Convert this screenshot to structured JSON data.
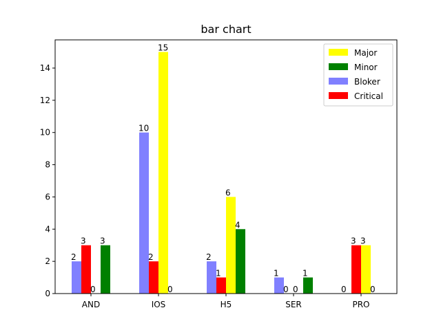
{
  "chart_data": {
    "type": "bar",
    "title": "bar chart",
    "xlabel": "",
    "ylabel": "",
    "categories": [
      "AND",
      "IOS",
      "H5",
      "SER",
      "PRO"
    ],
    "ylim": [
      0,
      15.75
    ],
    "yticks": [
      0,
      2,
      4,
      6,
      8,
      10,
      12,
      14
    ],
    "grid": false,
    "legend_position": "top-right",
    "legend_order": [
      "Major",
      "Minor",
      "Bloker",
      "Critical"
    ],
    "series": [
      {
        "name": "Bloker",
        "color": "#8080ff",
        "values": [
          2,
          10,
          2,
          1,
          0
        ]
      },
      {
        "name": "Critical",
        "color": "#ff0000",
        "values": [
          3,
          2,
          1,
          0,
          3
        ]
      },
      {
        "name": "Major",
        "color": "#ffff00",
        "values": [
          0,
          15,
          6,
          0,
          3
        ]
      },
      {
        "name": "Minor",
        "color": "#008000",
        "values": [
          3,
          0,
          4,
          1,
          0
        ]
      }
    ]
  }
}
